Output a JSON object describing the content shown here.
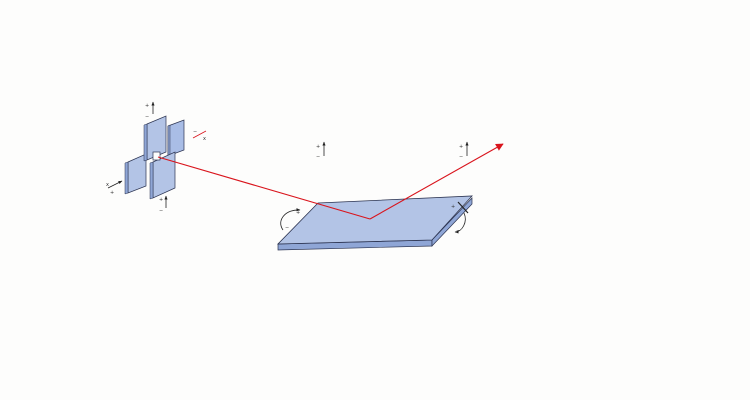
{
  "colors": {
    "background": "#fdfdfc",
    "plate_fill": "#b3c4e6",
    "plate_top": "#a9bde6",
    "plate_side": "#8fa6d6",
    "outline": "#2b3350",
    "beam": "#d9141c",
    "marker": "#222222"
  },
  "icons": {
    "beam_arrow": "arrowhead-icon",
    "axis_arrow": "up-arrow-icon",
    "rotation": "curved-arrow-icon"
  },
  "labels": {
    "plus": "+",
    "minus": "−",
    "x": "x"
  }
}
